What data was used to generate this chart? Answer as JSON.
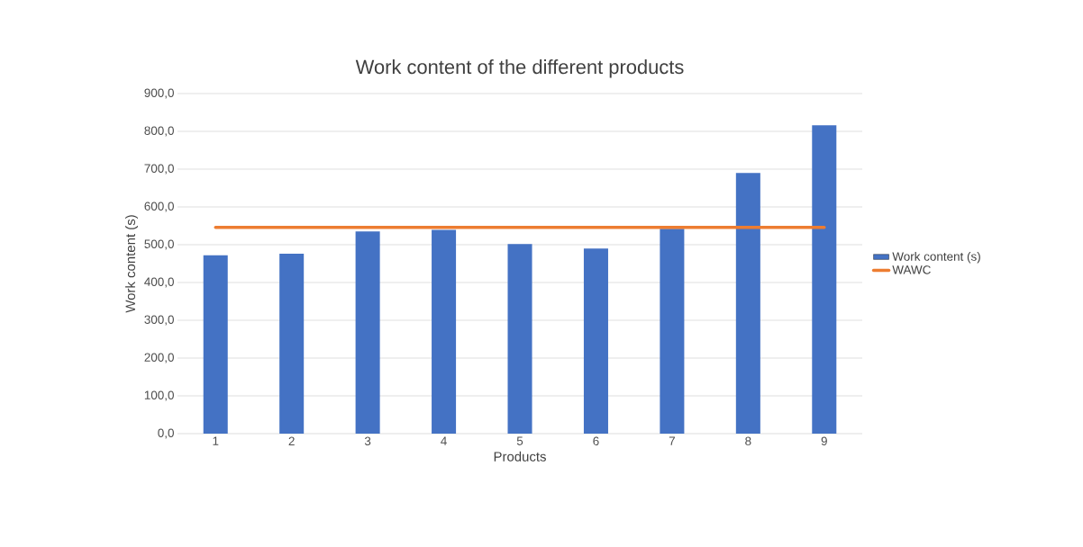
{
  "chart_data": {
    "type": "bar",
    "title": "Work content of the different products",
    "xlabel": "Products",
    "ylabel": "Work content (s)",
    "categories": [
      "1",
      "2",
      "3",
      "4",
      "5",
      "6",
      "7",
      "8",
      "9"
    ],
    "series": [
      {
        "name": "Work content (s)",
        "color": "#4472c4",
        "values": [
          472,
          476,
          535,
          539,
          502,
          490,
          542,
          690,
          816
        ]
      },
      {
        "name": "WAWC",
        "type": "line",
        "color": "#ed7d31",
        "values": [
          546,
          546,
          546,
          546,
          546,
          546,
          546,
          546,
          546
        ]
      }
    ],
    "ylim": [
      0,
      900
    ],
    "yticks": [
      {
        "value": 0,
        "label": "0,0"
      },
      {
        "value": 100,
        "label": "100,0"
      },
      {
        "value": 200,
        "label": "200,0"
      },
      {
        "value": 300,
        "label": "300,0"
      },
      {
        "value": 400,
        "label": "400,0"
      },
      {
        "value": 500,
        "label": "500,0"
      },
      {
        "value": 600,
        "label": "600,0"
      },
      {
        "value": 700,
        "label": "700,0"
      },
      {
        "value": 800,
        "label": "800,0"
      },
      {
        "value": 900,
        "label": "900,0"
      }
    ],
    "grid": "y",
    "legend": "right"
  }
}
